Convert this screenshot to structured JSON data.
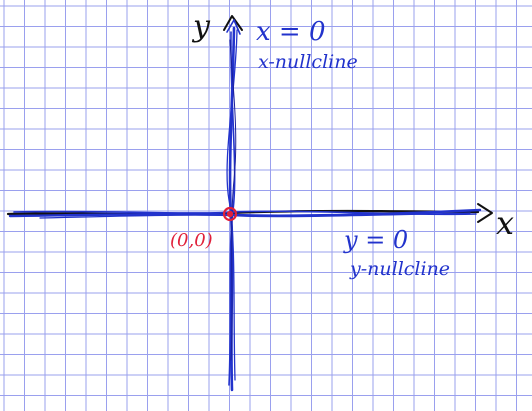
{
  "colors": {
    "grid": "#9aa0ee",
    "paper": "#ffffff",
    "ink_blue": "#2233cc",
    "ink_black": "#111111",
    "ink_red": "#e0203a"
  },
  "axes": {
    "x_label": "x",
    "y_label": "y"
  },
  "nullclines": {
    "x_equation": "x = 0",
    "x_caption": "x-nullcline",
    "y_equation": "y = 0",
    "y_caption": "y-nullcline"
  },
  "equilibrium": {
    "label": "(0,0)"
  }
}
